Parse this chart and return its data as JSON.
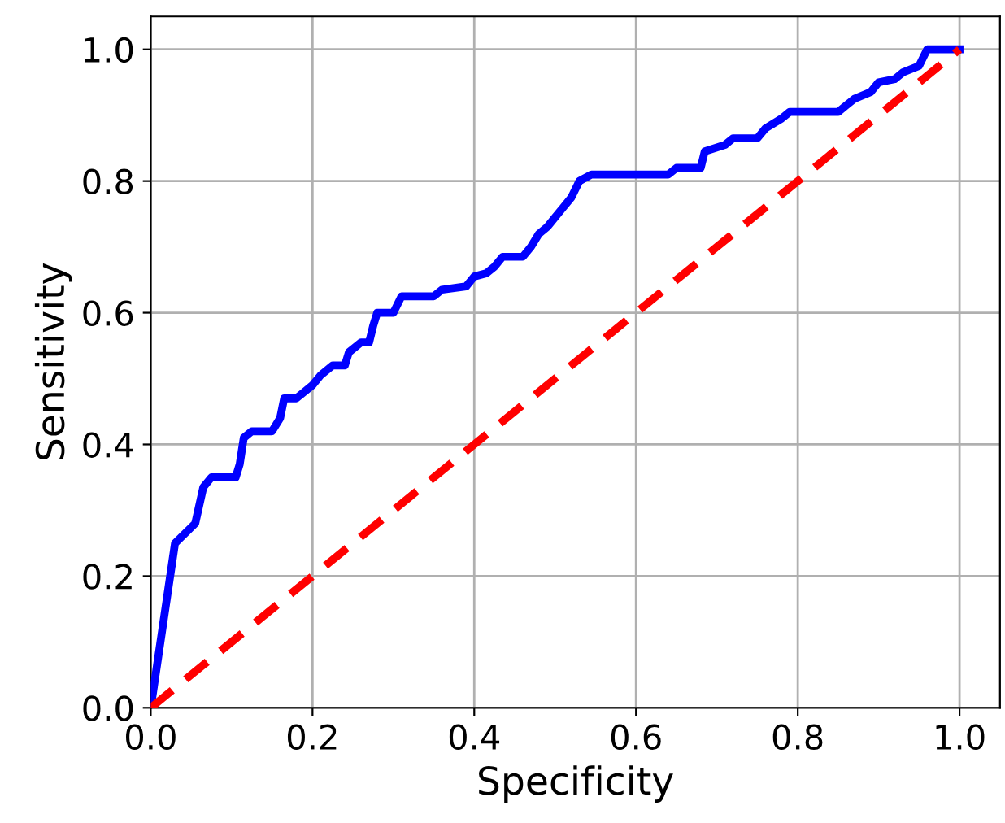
{
  "chart_data": {
    "type": "line",
    "xlabel": "Specificity",
    "ylabel": "Sensitivity",
    "xlim": [
      0,
      1.05
    ],
    "ylim": [
      0,
      1.05
    ],
    "xticks": [
      {
        "value": 0,
        "label": "0.0"
      },
      0.2,
      0.4,
      0.6,
      0.8,
      {
        "value": 1,
        "label": "1.0"
      }
    ],
    "yticks": [
      {
        "value": 0,
        "label": "0.0"
      },
      0.2,
      0.4,
      0.6,
      0.8,
      {
        "value": 1,
        "label": "1.0"
      }
    ],
    "grid": true,
    "series": [
      {
        "color": "#0000ff",
        "line_style": "solid",
        "x": [
          0,
          0.03,
          0.055,
          0.065,
          0.075,
          0.105,
          0.11,
          0.115,
          0.125,
          0.15,
          0.16,
          0.165,
          0.18,
          0.19,
          0.2,
          0.21,
          0.225,
          0.24,
          0.245,
          0.26,
          0.27,
          0.275,
          0.28,
          0.3,
          0.31,
          0.35,
          0.36,
          0.39,
          0.4,
          0.415,
          0.425,
          0.435,
          0.46,
          0.47,
          0.48,
          0.49,
          0.5,
          0.51,
          0.52,
          0.53,
          0.545,
          0.64,
          0.65,
          0.68,
          0.685,
          0.71,
          0.72,
          0.75,
          0.76,
          0.78,
          0.79,
          0.85,
          0.86,
          0.87,
          0.89,
          0.9,
          0.92,
          0.93,
          0.95,
          0.96,
          1.0
        ],
        "values": [
          0,
          0.25,
          0.28,
          0.335,
          0.35,
          0.35,
          0.37,
          0.41,
          0.42,
          0.42,
          0.44,
          0.47,
          0.47,
          0.48,
          0.49,
          0.505,
          0.52,
          0.52,
          0.54,
          0.555,
          0.555,
          0.58,
          0.6,
          0.6,
          0.625,
          0.625,
          0.635,
          0.64,
          0.655,
          0.66,
          0.67,
          0.685,
          0.685,
          0.7,
          0.72,
          0.73,
          0.745,
          0.76,
          0.775,
          0.8,
          0.81,
          0.81,
          0.82,
          0.82,
          0.845,
          0.855,
          0.865,
          0.865,
          0.88,
          0.895,
          0.905,
          0.905,
          0.915,
          0.925,
          0.935,
          0.95,
          0.955,
          0.965,
          0.975,
          1.0,
          1.0
        ]
      },
      {
        "color": "#ff0000",
        "line_style": "dashed",
        "x": [
          0,
          1
        ],
        "values": [
          0,
          1
        ]
      }
    ]
  }
}
